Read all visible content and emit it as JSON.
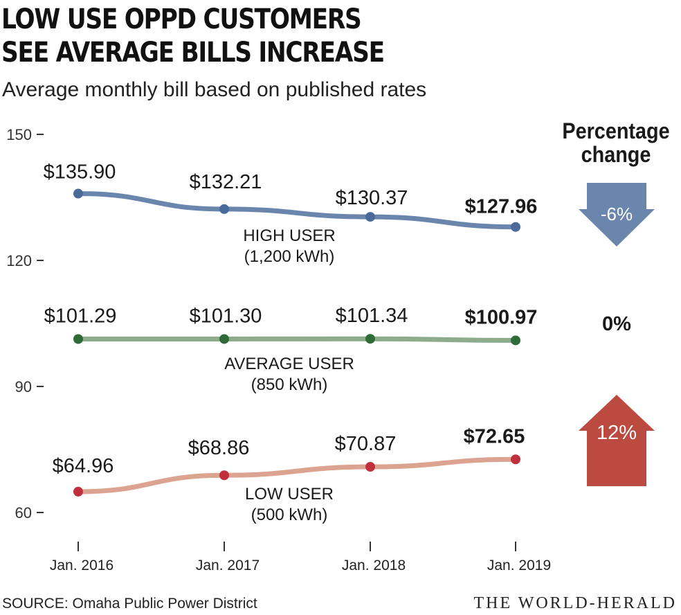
{
  "title_line1": "LOW USE OPPD CUSTOMERS",
  "title_line2": "SEE AVERAGE BILLS INCREASE",
  "subtitle": "Average monthly bill based on published rates",
  "pct_header_line1": "Percentage",
  "pct_header_line2": "change",
  "source": "SOURCE: Omaha Public Power District",
  "credit": "THE WORLD-HERALD",
  "chart_data": {
    "type": "line",
    "categories": [
      "Jan. 2016",
      "Jan. 2017",
      "Jan. 2018",
      "Jan. 2019"
    ],
    "yticks": [
      150,
      120,
      90,
      60
    ],
    "ylim": [
      60,
      150
    ],
    "series": [
      {
        "name": "HIGH USER",
        "sub": "(1,200 kWh)",
        "values": [
          135.9,
          132.21,
          130.37,
          127.96
        ],
        "labels": [
          "$135.90",
          "$132.21",
          "$130.37",
          "$127.96"
        ],
        "line_color": "#6b86ad",
        "dot_color": "#4a6a98",
        "change": "-6%",
        "change_dir": "down",
        "arrow_color": "#6b86ad"
      },
      {
        "name": "AVERAGE USER",
        "sub": "(850 kWh)",
        "values": [
          101.29,
          101.3,
          101.34,
          100.97
        ],
        "labels": [
          "$101.29",
          "$101.30",
          "$101.34",
          "$100.97"
        ],
        "line_color": "#8dac8b",
        "dot_color": "#2e6b38",
        "change": "0%",
        "change_dir": "none",
        "arrow_color": ""
      },
      {
        "name": "LOW USER",
        "sub": "(500 kWh)",
        "values": [
          64.96,
          68.86,
          70.87,
          72.65
        ],
        "labels": [
          "$64.96",
          "$68.86",
          "$70.87",
          "$72.65"
        ],
        "line_color": "#dda391",
        "dot_color": "#c0303c",
        "change": "12%",
        "change_dir": "up",
        "arrow_color": "#bb4a41"
      }
    ]
  }
}
